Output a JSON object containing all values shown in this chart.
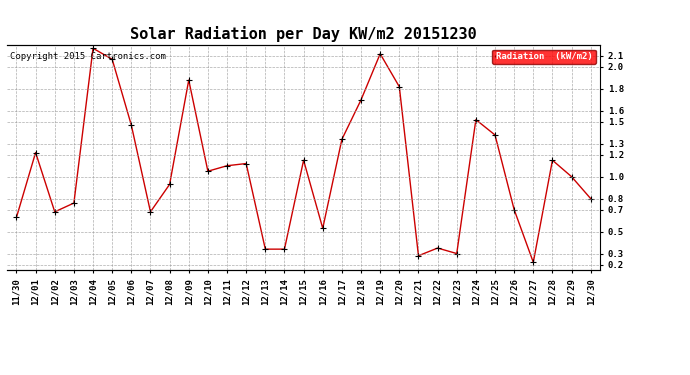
{
  "title": "Solar Radiation per Day KW/m2 20151230",
  "copyright_text": "Copyright 2015 Cartronics.com",
  "legend_label": "Radiation  (kW/m2)",
  "legend_bg": "#ff0000",
  "legend_text_color": "#ffffff",
  "dates": [
    "11/30",
    "12/01",
    "12/02",
    "12/03",
    "12/04",
    "12/05",
    "12/06",
    "12/07",
    "12/08",
    "12/09",
    "12/10",
    "12/11",
    "12/12",
    "12/13",
    "12/14",
    "12/15",
    "12/16",
    "12/17",
    "12/18",
    "12/19",
    "12/20",
    "12/21",
    "12/22",
    "12/23",
    "12/24",
    "12/25",
    "12/26",
    "12/27",
    "12/28",
    "12/29",
    "12/30"
  ],
  "values": [
    0.63,
    1.22,
    0.68,
    0.76,
    2.17,
    2.07,
    1.47,
    0.68,
    0.93,
    1.88,
    1.05,
    1.1,
    1.12,
    0.34,
    0.34,
    1.15,
    0.53,
    1.34,
    1.7,
    2.12,
    1.82,
    0.28,
    0.35,
    0.3,
    1.52,
    1.38,
    0.7,
    0.22,
    1.15,
    1.0,
    0.8
  ],
  "line_color": "#cc0000",
  "marker": "+",
  "marker_color": "#000000",
  "marker_size": 4,
  "ylim": [
    0.15,
    2.2
  ],
  "yticks": [
    0.2,
    0.3,
    0.5,
    0.7,
    0.8,
    1.0,
    1.2,
    1.3,
    1.5,
    1.6,
    1.8,
    2.0,
    2.1
  ],
  "bg_color": "#ffffff",
  "grid_color": "#999999",
  "title_fontsize": 11,
  "tick_fontsize": 6.5,
  "copyright_fontsize": 6.5
}
